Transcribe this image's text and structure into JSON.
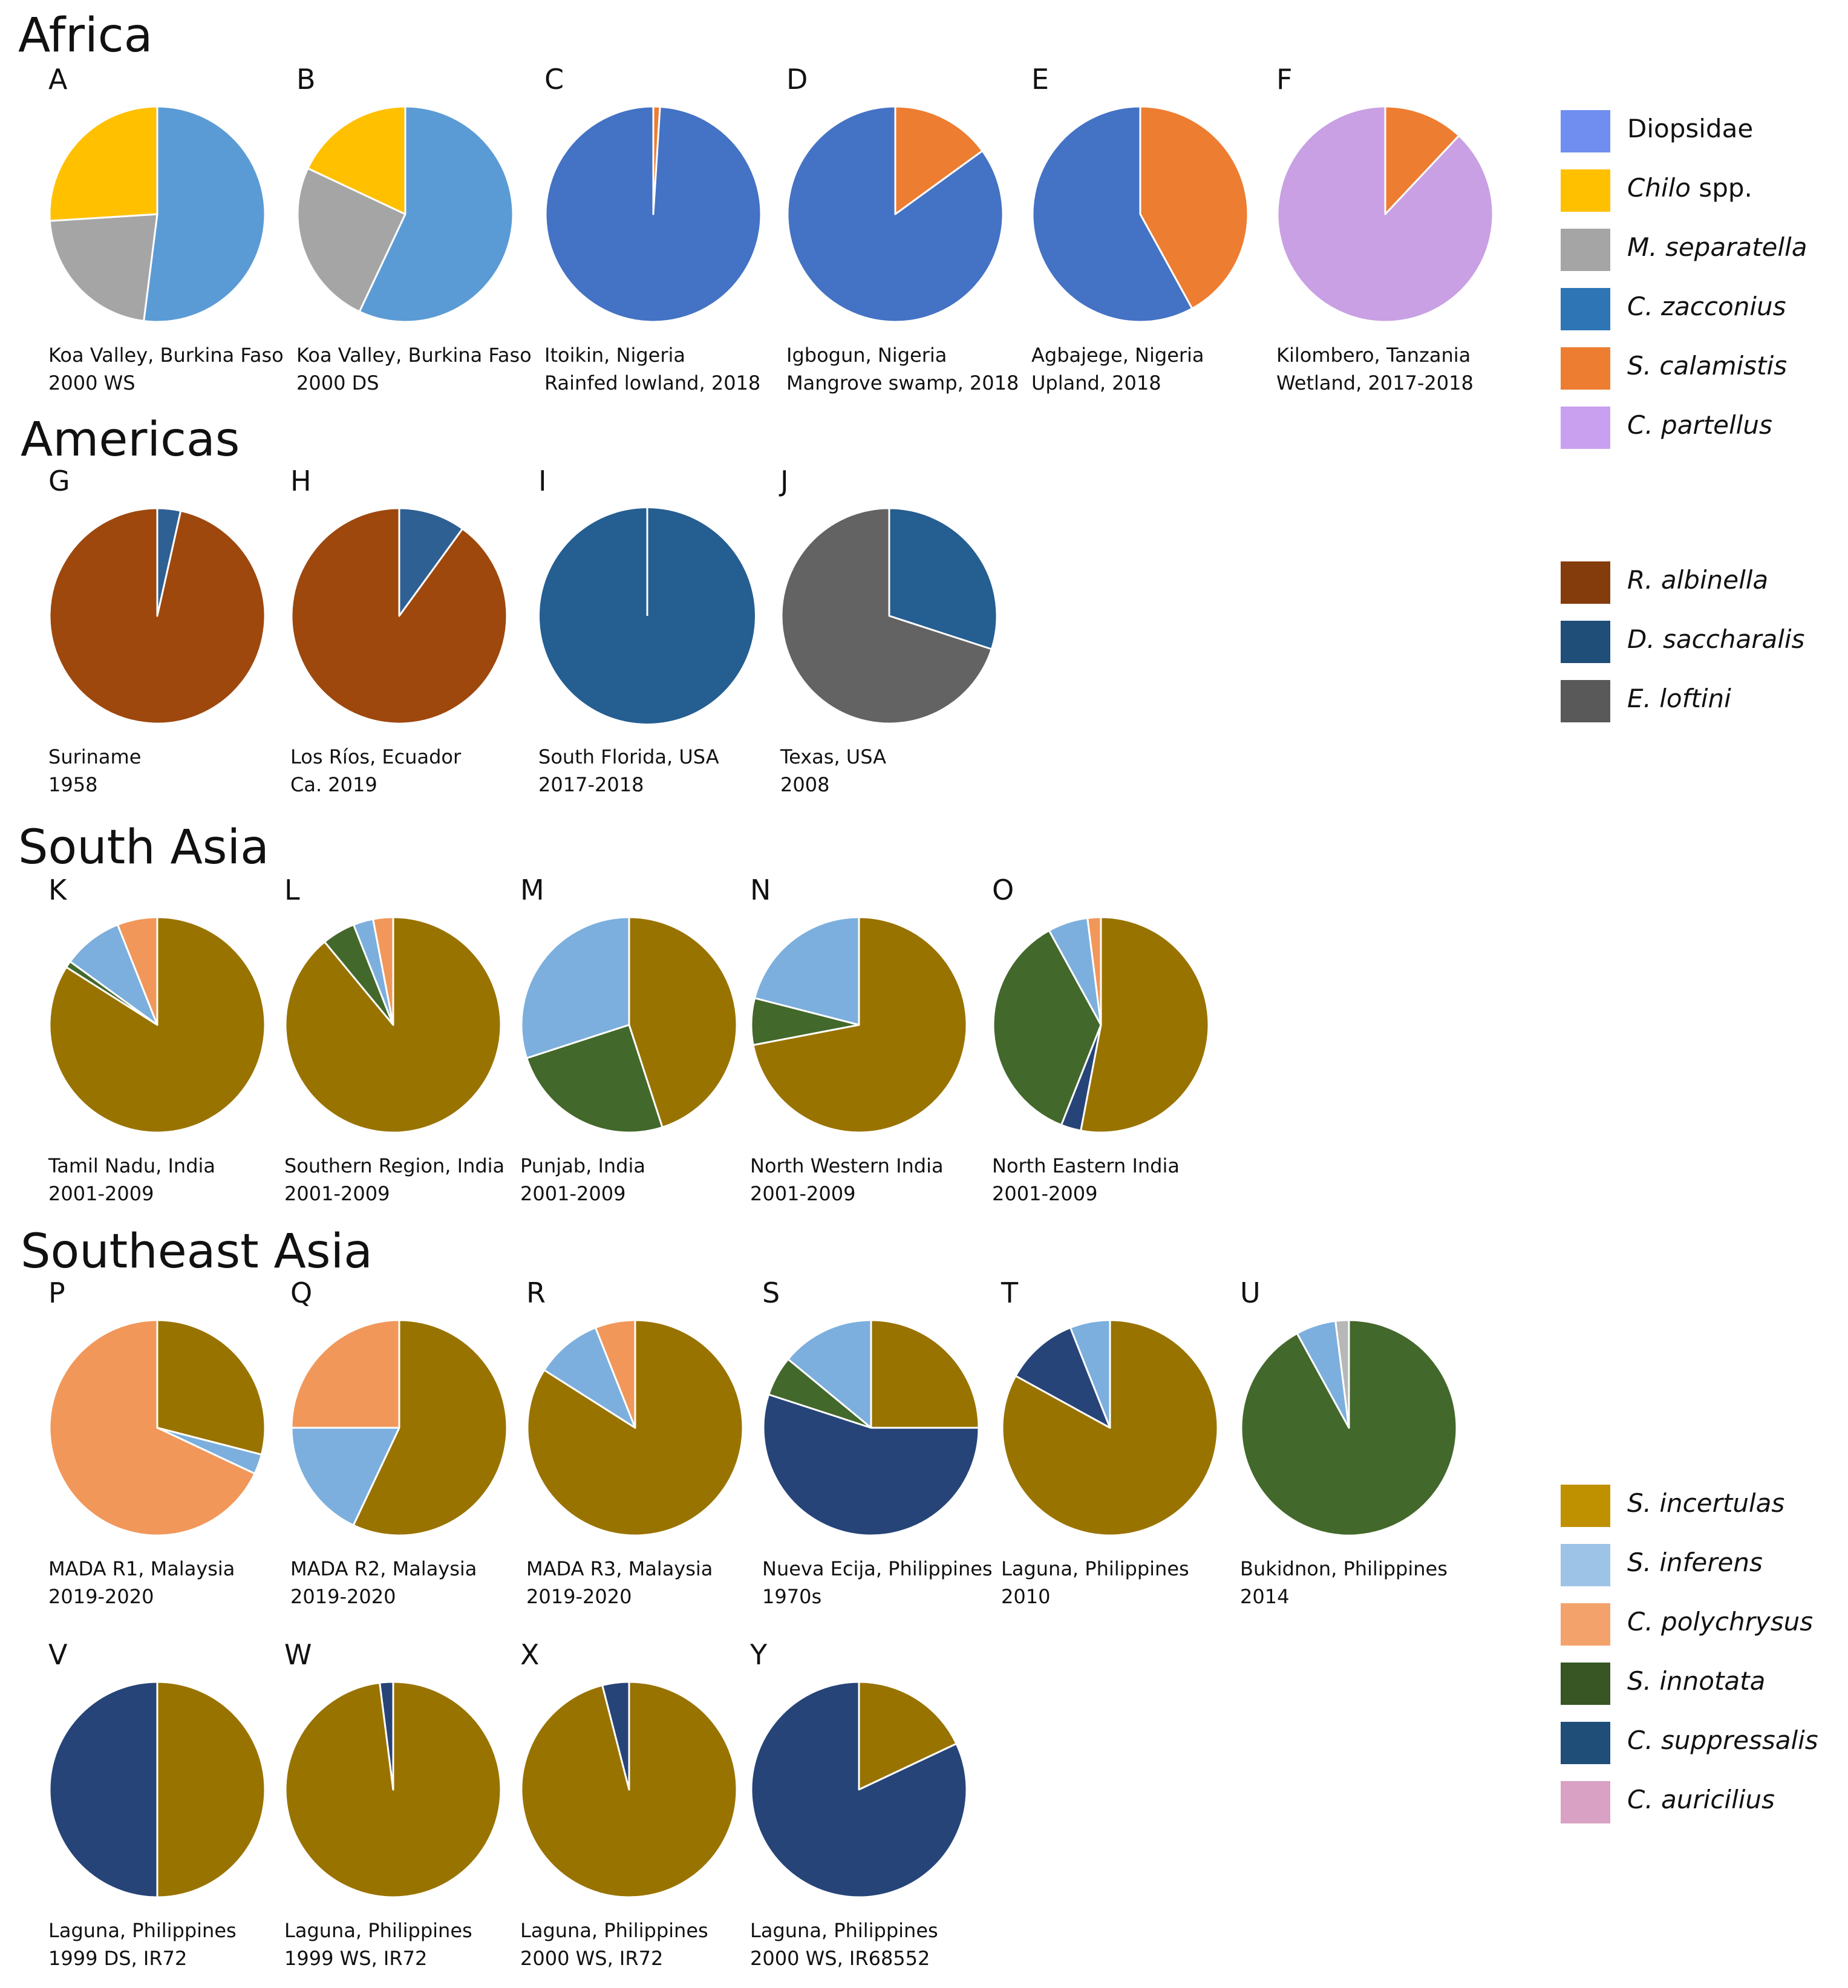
{
  "regions": [
    {
      "title": "Africa"
    },
    {
      "title": "Americas"
    },
    {
      "title": "South Asia"
    },
    {
      "title": "Southeast Asia"
    }
  ],
  "legends": [
    {
      "items": [
        {
          "name": "Diopsidae",
          "italic": "",
          "rest": "Diopsidae",
          "color": "#6f8ef0"
        },
        {
          "name": "Chilo spp.",
          "italic": "Chilo",
          "rest": " spp.",
          "color": "#ffc000"
        },
        {
          "name": "M. separatella",
          "italic": "M. separatella",
          "rest": "",
          "color": "#a5a5a5"
        },
        {
          "name": "C. zacconius",
          "italic": "C. zacconius",
          "rest": "",
          "color": "#2e75b6"
        },
        {
          "name": "S. calamistis",
          "italic": "S. calamistis",
          "rest": "",
          "color": "#ed7d31"
        },
        {
          "name": "C. partellus",
          "italic": "C. partellus",
          "rest": "",
          "color": "#c9a0ef"
        }
      ]
    },
    {
      "items": [
        {
          "name": "R. albinella",
          "italic": "R. albinella",
          "rest": "",
          "color": "#843c0c"
        },
        {
          "name": "D. saccharalis",
          "italic": "D. saccharalis",
          "rest": "",
          "color": "#1f4e79"
        },
        {
          "name": "E. loftini",
          "italic": "E. loftini",
          "rest": "",
          "color": "#595959"
        }
      ]
    },
    {
      "items": [
        {
          "name": "S. incertulas",
          "italic": "S. incertulas",
          "rest": "",
          "color": "#bf9000"
        },
        {
          "name": "S. inferens",
          "italic": "S. inferens",
          "rest": "",
          "color": "#9dc3e6"
        },
        {
          "name": "C. polychrysus",
          "italic": "C. polychrysus",
          "rest": "",
          "color": "#f4a26b"
        },
        {
          "name": "S. innotata",
          "italic": "S. innotata",
          "rest": "",
          "color": "#375623"
        },
        {
          "name": "C. suppressalis",
          "italic": "C. suppressalis",
          "rest": "",
          "color": "#1f4e79"
        },
        {
          "name": "C. auricilius",
          "italic": "C. auricilius",
          "rest": "",
          "color": "#d9a1c3"
        }
      ]
    }
  ],
  "chart_data": [
    {
      "type": "pie",
      "panel": "A",
      "caption": [
        "Koa Valley, Burkina Faso",
        "2000 WS"
      ],
      "slices": [
        {
          "label": "Blue",
          "value": 52,
          "color": "#5b9bd5"
        },
        {
          "label": "M. separatella",
          "value": 22,
          "color": "#a5a5a5"
        },
        {
          "label": "Chilo spp.",
          "value": 26,
          "color": "#ffc000"
        }
      ]
    },
    {
      "type": "pie",
      "panel": "B",
      "caption": [
        "Koa Valley, Burkina Faso",
        "2000 DS"
      ],
      "slices": [
        {
          "label": "Blue",
          "value": 57,
          "color": "#5b9bd5"
        },
        {
          "label": "M. separatella",
          "value": 25,
          "color": "#a5a5a5"
        },
        {
          "label": "Chilo spp.",
          "value": 18,
          "color": "#ffc000"
        }
      ]
    },
    {
      "type": "pie",
      "panel": "C",
      "caption": [
        "Itoikin, Nigeria",
        "Rainfed lowland, 2018"
      ],
      "slices": [
        {
          "label": "S. calamistis",
          "value": 1,
          "color": "#ed7d31"
        },
        {
          "label": "Diopsidae",
          "value": 99,
          "color": "#4472c4"
        }
      ]
    },
    {
      "type": "pie",
      "panel": "D",
      "caption": [
        "Igbogun, Nigeria",
        "Mangrove swamp, 2018"
      ],
      "slices": [
        {
          "label": "S. calamistis",
          "value": 15,
          "color": "#ed7d31"
        },
        {
          "label": "Diopsidae",
          "value": 85,
          "color": "#4472c4"
        }
      ]
    },
    {
      "type": "pie",
      "panel": "E",
      "caption": [
        "Agbajege, Nigeria",
        "Upland, 2018"
      ],
      "slices": [
        {
          "label": "S. calamistis",
          "value": 42,
          "color": "#ed7d31"
        },
        {
          "label": "Diopsidae",
          "value": 58,
          "color": "#4472c4"
        }
      ]
    },
    {
      "type": "pie",
      "panel": "F",
      "caption": [
        "Kilombero, Tanzania",
        "Wetland, 2017-2018"
      ],
      "slices": [
        {
          "label": "S. calamistis",
          "value": 12,
          "color": "#ed7d31"
        },
        {
          "label": "C. partellus",
          "value": 88,
          "color": "#c9a0e3"
        }
      ]
    },
    {
      "type": "pie",
      "panel": "G",
      "caption": [
        "Suriname",
        "1958"
      ],
      "slices": [
        {
          "label": "D. saccharalis",
          "value": 3.5,
          "color": "#2e6094"
        },
        {
          "label": "R. albinella",
          "value": 96.5,
          "color": "#9e480e"
        }
      ]
    },
    {
      "type": "pie",
      "panel": "H",
      "caption": [
        "Los Ríos, Ecuador",
        "Ca. 2019"
      ],
      "slices": [
        {
          "label": "D. saccharalis",
          "value": 10,
          "color": "#2e6094"
        },
        {
          "label": "R. albinella",
          "value": 90,
          "color": "#9e480e"
        }
      ]
    },
    {
      "type": "pie",
      "panel": "I",
      "caption": [
        "South Florida, USA",
        "2017-2018"
      ],
      "slices": [
        {
          "label": "D. saccharalis",
          "value": 100,
          "color": "#255e91"
        }
      ]
    },
    {
      "type": "pie",
      "panel": "J",
      "caption": [
        "Texas, USA",
        "2008"
      ],
      "slices": [
        {
          "label": "D. saccharalis",
          "value": 30,
          "color": "#255e91"
        },
        {
          "label": "E. loftini",
          "value": 70,
          "color": "#636363"
        }
      ]
    },
    {
      "type": "pie",
      "panel": "K",
      "caption": [
        "Tamil Nadu, India",
        "2001-2009"
      ],
      "slices": [
        {
          "label": "S. incertulas",
          "value": 84,
          "color": "#997300"
        },
        {
          "label": "S. innotata",
          "value": 1,
          "color": "#43682b"
        },
        {
          "label": "S. inferens",
          "value": 9,
          "color": "#7cafdd"
        },
        {
          "label": "C. polychrysus",
          "value": 6,
          "color": "#f1975a"
        }
      ]
    },
    {
      "type": "pie",
      "panel": "L",
      "caption": [
        "Southern Region, India",
        "2001-2009"
      ],
      "slices": [
        {
          "label": "S. incertulas",
          "value": 89,
          "color": "#997300"
        },
        {
          "label": "S. innotata",
          "value": 5,
          "color": "#43682b"
        },
        {
          "label": "S. inferens",
          "value": 3,
          "color": "#7cafdd"
        },
        {
          "label": "C. polychrysus",
          "value": 3,
          "color": "#f1975a"
        }
      ]
    },
    {
      "type": "pie",
      "panel": "M",
      "caption": [
        "Punjab, India",
        "2001-2009"
      ],
      "slices": [
        {
          "label": "S. incertulas",
          "value": 45,
          "color": "#997300"
        },
        {
          "label": "S. innotata",
          "value": 25,
          "color": "#43682b"
        },
        {
          "label": "S. inferens",
          "value": 30,
          "color": "#7cafdd"
        }
      ]
    },
    {
      "type": "pie",
      "panel": "N",
      "caption": [
        "North Western India",
        "2001-2009"
      ],
      "slices": [
        {
          "label": "S. incertulas",
          "value": 72,
          "color": "#997300"
        },
        {
          "label": "S. innotata",
          "value": 7,
          "color": "#43682b"
        },
        {
          "label": "S. inferens",
          "value": 21,
          "color": "#7cafdd"
        }
      ]
    },
    {
      "type": "pie",
      "panel": "O",
      "caption": [
        "North Eastern India",
        "2001-2009"
      ],
      "slices": [
        {
          "label": "S. incertulas",
          "value": 53,
          "color": "#997300"
        },
        {
          "label": "C. suppressalis",
          "value": 3,
          "color": "#264478"
        },
        {
          "label": "S. innotata",
          "value": 36,
          "color": "#43682b"
        },
        {
          "label": "S. inferens",
          "value": 6,
          "color": "#7cafdd"
        },
        {
          "label": "C. polychrysus",
          "value": 2,
          "color": "#f1975a"
        }
      ]
    },
    {
      "type": "pie",
      "panel": "P",
      "caption": [
        "MADA R1, Malaysia",
        "2019-2020"
      ],
      "slices": [
        {
          "label": "S. incertulas",
          "value": 29,
          "color": "#997300"
        },
        {
          "label": "S. inferens",
          "value": 3,
          "color": "#7cafdd"
        },
        {
          "label": "C. polychrysus",
          "value": 68,
          "color": "#f1975a"
        }
      ]
    },
    {
      "type": "pie",
      "panel": "Q",
      "caption": [
        "MADA R2, Malaysia",
        "2019-2020"
      ],
      "slices": [
        {
          "label": "S. incertulas",
          "value": 57,
          "color": "#997300"
        },
        {
          "label": "S. inferens",
          "value": 18,
          "color": "#7cafdd"
        },
        {
          "label": "C. polychrysus",
          "value": 25,
          "color": "#f1975a"
        }
      ]
    },
    {
      "type": "pie",
      "panel": "R",
      "caption": [
        "MADA R3, Malaysia",
        "2019-2020"
      ],
      "slices": [
        {
          "label": "S. incertulas",
          "value": 84,
          "color": "#997300"
        },
        {
          "label": "S. inferens",
          "value": 10,
          "color": "#7cafdd"
        },
        {
          "label": "C. polychrysus",
          "value": 6,
          "color": "#f1975a"
        }
      ]
    },
    {
      "type": "pie",
      "panel": "S",
      "caption": [
        "Nueva Ecija, Philippines",
        "1970s"
      ],
      "slices": [
        {
          "label": "S. incertulas",
          "value": 25,
          "color": "#997300"
        },
        {
          "label": "C. suppressalis",
          "value": 55,
          "color": "#264478"
        },
        {
          "label": "S. innotata",
          "value": 6,
          "color": "#43682b"
        },
        {
          "label": "S. inferens",
          "value": 14,
          "color": "#7cafdd"
        }
      ]
    },
    {
      "type": "pie",
      "panel": "T",
      "caption": [
        "Laguna, Philippines",
        "2010"
      ],
      "slices": [
        {
          "label": "S. incertulas",
          "value": 83,
          "color": "#997300"
        },
        {
          "label": "C. suppressalis",
          "value": 11,
          "color": "#264478"
        },
        {
          "label": "S. inferens",
          "value": 6,
          "color": "#7cafdd"
        }
      ]
    },
    {
      "type": "pie",
      "panel": "U",
      "caption": [
        "Bukidnon, Philippines",
        "2014"
      ],
      "slices": [
        {
          "label": "S. innotata",
          "value": 92,
          "color": "#43682b"
        },
        {
          "label": "S. inferens",
          "value": 6,
          "color": "#7cafdd"
        },
        {
          "label": "C. auricilius",
          "value": 2,
          "color": "#b7b7b7"
        }
      ]
    },
    {
      "type": "pie",
      "panel": "V",
      "caption": [
        "Laguna, Philippines",
        "1999 DS, IR72"
      ],
      "slices": [
        {
          "label": "S. incertulas",
          "value": 50,
          "color": "#997300"
        },
        {
          "label": "C. suppressalis",
          "value": 50,
          "color": "#264478"
        }
      ]
    },
    {
      "type": "pie",
      "panel": "W",
      "caption": [
        "Laguna, Philippines",
        "1999 WS, IR72"
      ],
      "slices": [
        {
          "label": "S. incertulas",
          "value": 98,
          "color": "#997300"
        },
        {
          "label": "C. suppressalis",
          "value": 2,
          "color": "#264478"
        }
      ]
    },
    {
      "type": "pie",
      "panel": "X",
      "caption": [
        "Laguna, Philippines",
        "2000 WS, IR72"
      ],
      "slices": [
        {
          "label": "S. incertulas",
          "value": 96,
          "color": "#997300"
        },
        {
          "label": "C. suppressalis",
          "value": 4,
          "color": "#264478"
        }
      ]
    },
    {
      "type": "pie",
      "panel": "Y",
      "caption": [
        "Laguna, Philippines",
        "2000 WS, IR68552"
      ],
      "slices": [
        {
          "label": "S. incertulas",
          "value": 18,
          "color": "#997300"
        },
        {
          "label": "C. suppressalis",
          "value": 82,
          "color": "#264478"
        }
      ]
    }
  ]
}
